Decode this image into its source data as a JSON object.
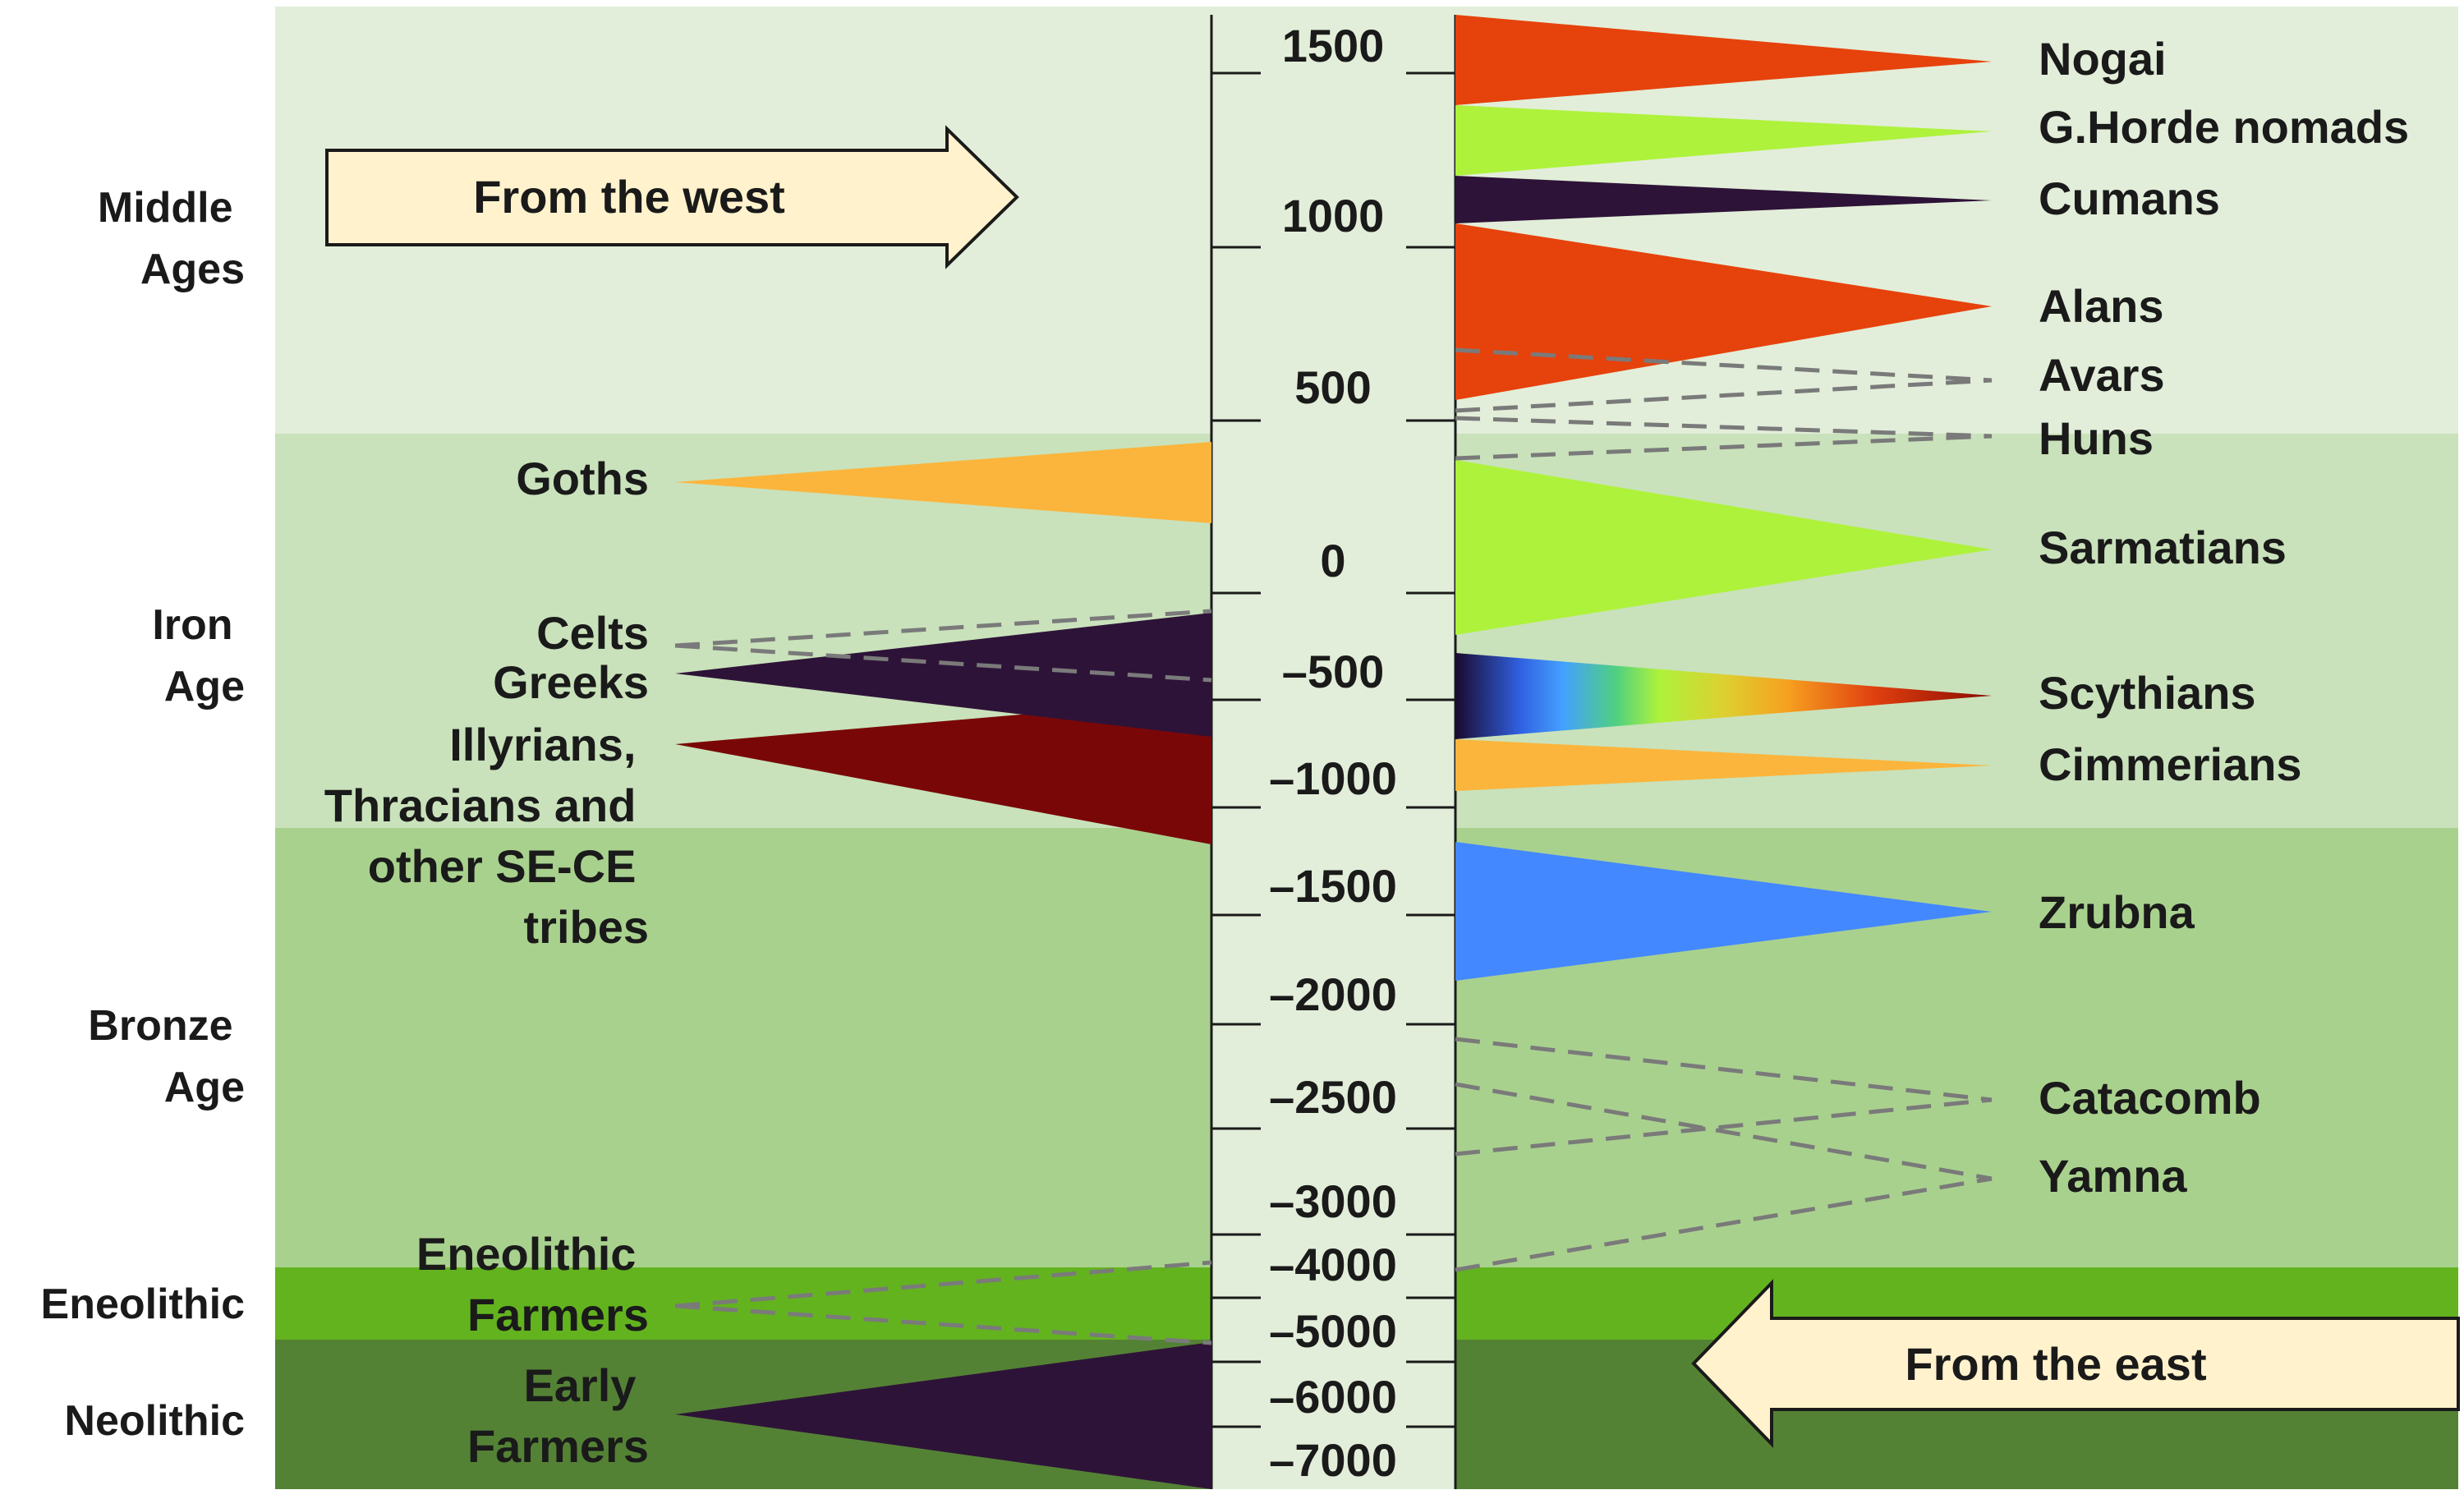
{
  "eras": [
    {
      "id": "middle",
      "lines": [
        "Middle",
        "Ages"
      ],
      "color": "#e2eed9"
    },
    {
      "id": "iron",
      "lines": [
        "Iron",
        "Age"
      ],
      "color": "#c9e2bb"
    },
    {
      "id": "bronze",
      "lines": [
        "Bronze",
        "Age"
      ],
      "color": "#a9d18e"
    },
    {
      "id": "eneolithic",
      "lines": [
        "Eneolithic"
      ],
      "color": "#63b31f"
    },
    {
      "id": "neolithic",
      "lines": [
        "Neolithic"
      ],
      "color": "#548235"
    }
  ],
  "timeline_ticks": [
    "1500",
    "1000",
    "500",
    "0",
    "–500",
    "–1000",
    "–1500",
    "–2000",
    "–2500",
    "–3000",
    "–4000",
    "–5000",
    "–6000",
    "–7000"
  ],
  "arrows": {
    "west": "From the west",
    "east": "From the east"
  },
  "west_populations": [
    {
      "id": "goths",
      "lines": [
        "Goths"
      ],
      "color": "#fbb53c",
      "style": "solid"
    },
    {
      "id": "celts",
      "lines": [
        "Celts"
      ],
      "color": "#7a7a7a",
      "style": "dashed"
    },
    {
      "id": "greeks",
      "lines": [
        "Greeks"
      ],
      "color": "#2e1338",
      "style": "solid"
    },
    {
      "id": "illyrians",
      "lines": [
        "Illyrians,",
        "Thracians and",
        "other SE-CE",
        "tribes"
      ],
      "color": "#7a0707",
      "style": "solid"
    },
    {
      "id": "eneolithic-farmers",
      "lines": [
        "Eneolithic",
        "Farmers"
      ],
      "color": "#7a7a7a",
      "style": "dashed"
    },
    {
      "id": "early-farmers",
      "lines": [
        "Early",
        "Farmers"
      ],
      "color": "#2e1338",
      "style": "solid"
    }
  ],
  "east_populations": [
    {
      "id": "nogai",
      "label": "Nogai",
      "color": "#e6420c",
      "style": "solid"
    },
    {
      "id": "golden-horde",
      "label": "G.Horde nomads",
      "color": "#aef23c",
      "style": "solid"
    },
    {
      "id": "cumans",
      "label": "Cumans",
      "color": "#2e1338",
      "style": "solid"
    },
    {
      "id": "alans",
      "label": "Alans",
      "color": "#e6420c",
      "style": "solid"
    },
    {
      "id": "avars",
      "label": "Avars",
      "color": "#7a7a7a",
      "style": "dashed"
    },
    {
      "id": "huns",
      "label": "Huns",
      "color": "#7a7a7a",
      "style": "dashed"
    },
    {
      "id": "sarmatians",
      "label": "Sarmatians",
      "color": "#aef23c",
      "style": "solid"
    },
    {
      "id": "scythians",
      "label": "Scythians",
      "color": "gradient",
      "style": "solid"
    },
    {
      "id": "cimmerians",
      "label": "Cimmerians",
      "color": "#fbb53c",
      "style": "solid"
    },
    {
      "id": "zrubna",
      "label": "Zrubna",
      "color": "#4488ff",
      "style": "solid"
    },
    {
      "id": "catacomb",
      "label": "Catacomb",
      "color": "#7a7a7a",
      "style": "dashed"
    },
    {
      "id": "yamna",
      "label": "Yamna",
      "color": "#7a7a7a",
      "style": "dashed"
    }
  ],
  "colors": {
    "timeline_bg": "#e2eed9",
    "arrow_fill": "#fff2cc",
    "dashed": "#7a7a7a"
  }
}
